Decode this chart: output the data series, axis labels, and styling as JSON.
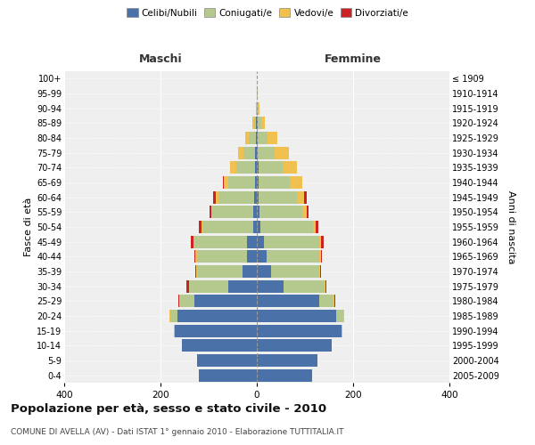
{
  "age_groups": [
    "0-4",
    "5-9",
    "10-14",
    "15-19",
    "20-24",
    "25-29",
    "30-34",
    "35-39",
    "40-44",
    "45-49",
    "50-54",
    "55-59",
    "60-64",
    "65-69",
    "70-74",
    "75-79",
    "80-84",
    "85-89",
    "90-94",
    "95-99",
    "100+"
  ],
  "birth_years": [
    "2005-2009",
    "2000-2004",
    "1995-1999",
    "1990-1994",
    "1985-1989",
    "1980-1984",
    "1975-1979",
    "1970-1974",
    "1965-1969",
    "1960-1964",
    "1955-1959",
    "1950-1954",
    "1945-1949",
    "1940-1944",
    "1935-1939",
    "1930-1934",
    "1925-1929",
    "1920-1924",
    "1915-1919",
    "1910-1914",
    "≤ 1909"
  ],
  "males": {
    "celibe": [
      120,
      125,
      155,
      170,
      165,
      130,
      60,
      30,
      20,
      20,
      8,
      7,
      5,
      4,
      3,
      3,
      2,
      1,
      0,
      0,
      0
    ],
    "coniugato": [
      0,
      0,
      0,
      3,
      15,
      30,
      80,
      95,
      105,
      110,
      105,
      85,
      75,
      55,
      40,
      25,
      15,
      5,
      1,
      0,
      0
    ],
    "vedovo": [
      0,
      0,
      0,
      0,
      1,
      1,
      1,
      1,
      2,
      2,
      2,
      3,
      5,
      10,
      12,
      10,
      8,
      3,
      1,
      0,
      0
    ],
    "divorziato": [
      0,
      0,
      0,
      0,
      1,
      2,
      5,
      2,
      2,
      5,
      5,
      4,
      5,
      1,
      0,
      0,
      0,
      0,
      0,
      0,
      0
    ]
  },
  "females": {
    "nubile": [
      115,
      125,
      155,
      175,
      165,
      130,
      55,
      30,
      20,
      15,
      7,
      5,
      4,
      4,
      3,
      2,
      2,
      1,
      0,
      0,
      0
    ],
    "coniugata": [
      0,
      0,
      0,
      3,
      15,
      30,
      85,
      100,
      110,
      115,
      110,
      90,
      80,
      65,
      50,
      35,
      20,
      8,
      2,
      1,
      0
    ],
    "vedova": [
      0,
      0,
      0,
      0,
      1,
      1,
      2,
      2,
      3,
      4,
      5,
      8,
      15,
      25,
      30,
      30,
      20,
      8,
      3,
      1,
      0
    ],
    "divorziata": [
      0,
      0,
      0,
      0,
      1,
      2,
      3,
      2,
      2,
      5,
      5,
      4,
      4,
      1,
      0,
      0,
      0,
      0,
      0,
      0,
      0
    ]
  },
  "colors": {
    "celibe_nubile": "#4a72a8",
    "coniugato_a": "#b5c98e",
    "vedovo_a": "#f0c050",
    "divorziato_a": "#cc2222"
  },
  "xlim": 400,
  "title": "Popolazione per età, sesso e stato civile - 2010",
  "subtitle": "COMUNE DI AVELLA (AV) - Dati ISTAT 1° gennaio 2010 - Elaborazione TUTTITALIA.IT",
  "ylabel_left": "Fasce di età",
  "ylabel_right": "Anni di nascita",
  "xlabel_maschi": "Maschi",
  "xlabel_femmine": "Femmine",
  "bg_color": "#ffffff",
  "plot_bg": "#efefef"
}
